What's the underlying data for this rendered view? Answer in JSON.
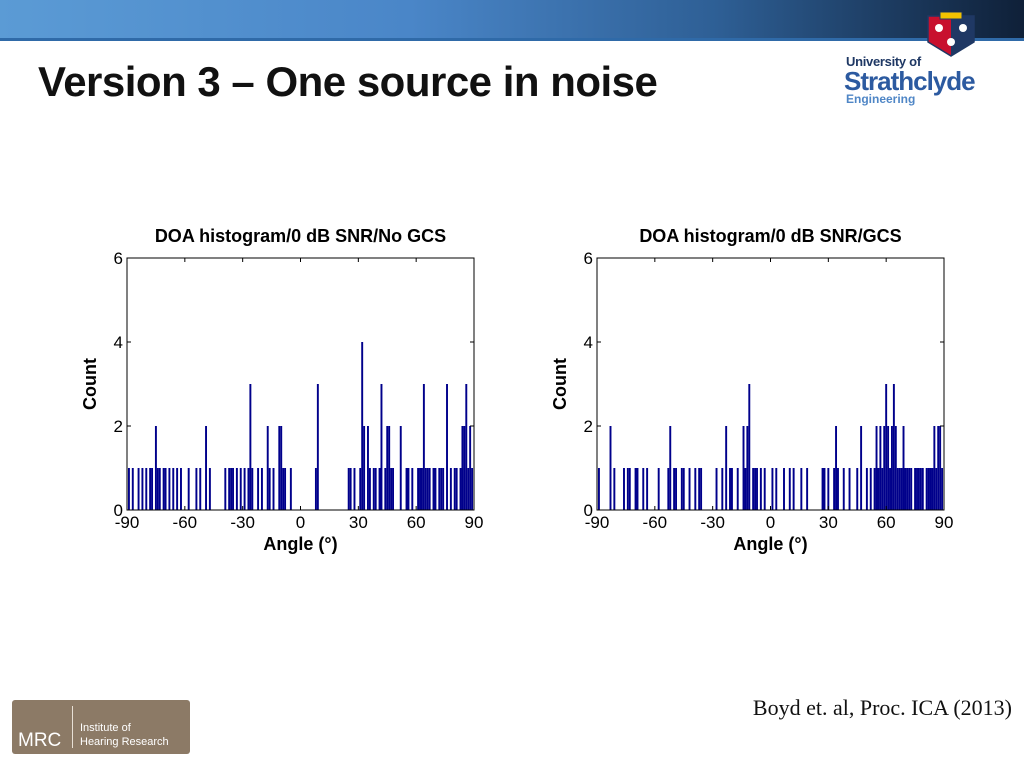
{
  "slide": {
    "title": "Version 3 – One source in noise",
    "citation": "Boyd et. al, Proc. ICA (2013)"
  },
  "logo": {
    "line1": "University of",
    "line2": "Strathclyde",
    "line3": "Engineering"
  },
  "mrc": {
    "abbr": "MRC",
    "name_line1": "Institute of",
    "name_line2": "Hearing Research"
  },
  "chart_data": [
    {
      "type": "bar",
      "title": "DOA histogram/0 dB SNR/No GCS",
      "xlabel": "Angle (°)",
      "ylabel": "Count",
      "xlim": [
        -90,
        90
      ],
      "ylim": [
        0,
        6
      ],
      "xticks": [
        "-90",
        "-60",
        "-30",
        "0",
        "30",
        "60",
        "90"
      ],
      "yticks": [
        "0",
        "2",
        "4",
        "6"
      ],
      "bar_color": "#00008b",
      "grid": false,
      "x": [
        -89,
        -87,
        -84,
        -82,
        -80,
        -78,
        -77,
        -75,
        -74,
        -73,
        -71,
        -70,
        -68,
        -66,
        -64,
        -62,
        -58,
        -54,
        -52,
        -49,
        -47,
        -39,
        -37,
        -36,
        -35,
        -33,
        -31,
        -29,
        -27,
        -26,
        -25,
        -22,
        -20,
        -17,
        -16,
        -14,
        -11,
        -10,
        -9,
        -8,
        -5,
        8,
        9,
        25,
        26,
        28,
        31,
        32,
        33,
        35,
        36,
        38,
        39,
        41,
        42,
        44,
        45,
        46,
        47,
        48,
        52,
        55,
        56,
        58,
        61,
        62,
        63,
        64,
        65,
        66,
        67,
        69,
        70,
        72,
        73,
        74,
        76,
        78,
        80,
        81,
        83,
        84,
        85,
        86,
        87,
        88,
        89
      ],
      "values": [
        1,
        1,
        1,
        1,
        1,
        1,
        1,
        2,
        1,
        1,
        1,
        1,
        1,
        1,
        1,
        1,
        1,
        1,
        1,
        2,
        1,
        1,
        1,
        1,
        1,
        1,
        1,
        1,
        1,
        3,
        1,
        1,
        1,
        2,
        1,
        1,
        2,
        2,
        1,
        1,
        1,
        1,
        3,
        1,
        1,
        1,
        1,
        4,
        2,
        2,
        1,
        1,
        1,
        1,
        3,
        1,
        2,
        2,
        1,
        1,
        2,
        1,
        1,
        1,
        1,
        1,
        1,
        3,
        1,
        1,
        1,
        1,
        1,
        1,
        1,
        1,
        3,
        1,
        1,
        1,
        1,
        2,
        2,
        3,
        1,
        2,
        1
      ]
    },
    {
      "type": "bar",
      "title": "DOA histogram/0 dB SNR/GCS",
      "xlabel": "Angle (°)",
      "ylabel": "Count",
      "xlim": [
        -90,
        90
      ],
      "ylim": [
        0,
        6
      ],
      "xticks": [
        "-90",
        "-60",
        "-30",
        "0",
        "30",
        "60",
        "90"
      ],
      "yticks": [
        "0",
        "2",
        "4",
        "6"
      ],
      "bar_color": "#00008b",
      "grid": false,
      "x": [
        -89,
        -83,
        -81,
        -76,
        -74,
        -73,
        -70,
        -69,
        -66,
        -64,
        -58,
        -53,
        -52,
        -50,
        -49,
        -46,
        -45,
        -42,
        -39,
        -37,
        -36,
        -28,
        -25,
        -23,
        -21,
        -20,
        -17,
        -14,
        -13,
        -12,
        -11,
        -9,
        -8,
        -7,
        -5,
        -3,
        1,
        3,
        7,
        10,
        12,
        16,
        19,
        27,
        28,
        30,
        33,
        34,
        35,
        38,
        41,
        45,
        47,
        50,
        52,
        54,
        55,
        56,
        57,
        58,
        59,
        60,
        61,
        62,
        63,
        64,
        65,
        66,
        67,
        68,
        69,
        70,
        71,
        72,
        73,
        75,
        76,
        77,
        78,
        79,
        81,
        82,
        83,
        84,
        85,
        86,
        87,
        88,
        89
      ],
      "values": [
        1,
        2,
        1,
        1,
        1,
        1,
        1,
        1,
        1,
        1,
        1,
        1,
        2,
        1,
        1,
        1,
        1,
        1,
        1,
        1,
        1,
        1,
        1,
        2,
        1,
        1,
        1,
        2,
        1,
        2,
        3,
        1,
        1,
        1,
        1,
        1,
        1,
        1,
        1,
        1,
        1,
        1,
        1,
        1,
        1,
        1,
        1,
        2,
        1,
        1,
        1,
        1,
        2,
        1,
        1,
        1,
        2,
        1,
        2,
        1,
        2,
        3,
        2,
        1,
        2,
        3,
        2,
        1,
        1,
        1,
        2,
        1,
        1,
        1,
        1,
        1,
        1,
        1,
        1,
        1,
        1,
        1,
        1,
        1,
        2,
        1,
        2,
        2,
        1
      ]
    }
  ]
}
